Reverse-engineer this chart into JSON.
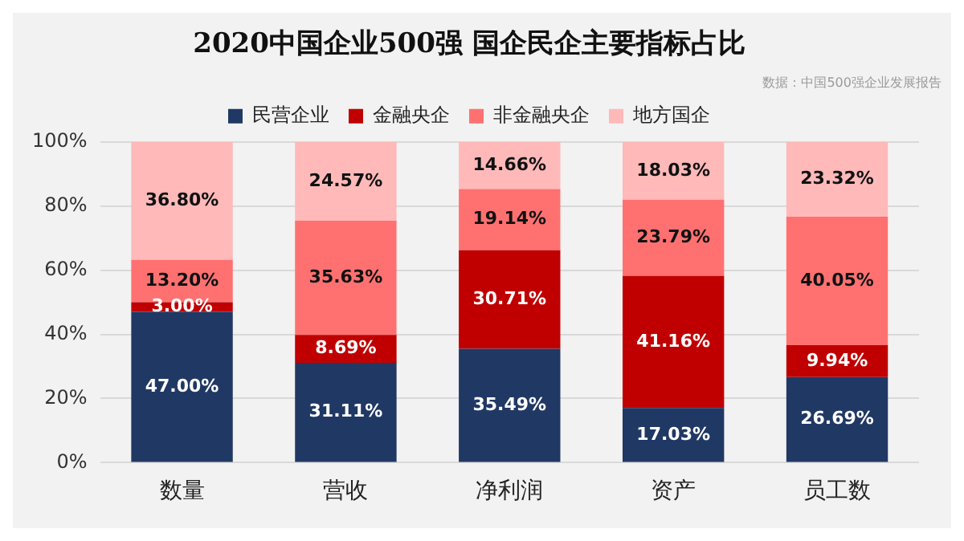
{
  "chart_data": {
    "type": "bar",
    "stacked": true,
    "title": "2020中国企业500强 国企民企主要指标占比",
    "annotations": [
      "数据：中国500强企业发展报告"
    ],
    "categories": [
      "数量",
      "营收",
      "净利润",
      "资产",
      "员工数"
    ],
    "series": [
      {
        "name": "民营企业",
        "color": "#203864",
        "values": [
          47.0,
          31.11,
          35.49,
          17.03,
          26.69
        ],
        "value_labels": [
          "47.00%",
          "31.11%",
          "35.49%",
          "17.03%",
          "26.69%"
        ]
      },
      {
        "name": "金融央企",
        "color": "#c00000",
        "values": [
          3.0,
          8.69,
          30.71,
          41.16,
          9.94
        ],
        "value_labels": [
          "3.00%",
          "8.69%",
          "30.71%",
          "41.16%",
          "9.94%"
        ]
      },
      {
        "name": "非金融央企",
        "color": "#ff7171",
        "values": [
          13.2,
          35.63,
          19.14,
          23.79,
          40.05
        ],
        "value_labels": [
          "13.20%",
          "35.63%",
          "19.14%",
          "23.79%",
          "40.05%"
        ]
      },
      {
        "name": "地方国企",
        "color": "#ffb9b9",
        "values": [
          36.8,
          24.57,
          14.66,
          18.03,
          23.32
        ],
        "value_labels": [
          "36.80%",
          "24.57%",
          "14.66%",
          "18.03%",
          "23.32%"
        ]
      }
    ],
    "ylim": [
      0,
      100
    ],
    "yticks": [
      {
        "value": 0,
        "label": "0%"
      },
      {
        "value": 20,
        "label": "20%"
      },
      {
        "value": 40,
        "label": "40%"
      },
      {
        "value": 60,
        "label": "60%"
      },
      {
        "value": 80,
        "label": "80%"
      },
      {
        "value": 100,
        "label": "100%"
      }
    ],
    "grid": "y",
    "legend": "top"
  }
}
